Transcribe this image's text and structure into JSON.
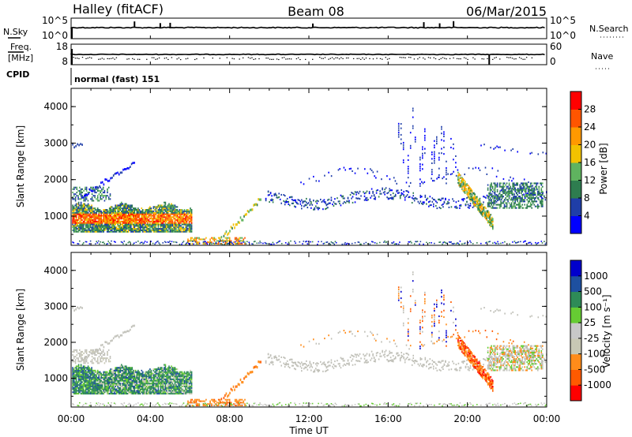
{
  "header": {
    "title": "Halley (fitACF)",
    "beam": "Beam 08",
    "date": "06/Mar/2015"
  },
  "top_panels": {
    "nsky_label": "N.Sky",
    "nsearch_label": "N.Search",
    "nsky_ticks": [
      "10^5",
      "10^0"
    ],
    "nsearch_ticks": [
      "10^5",
      "10^0"
    ],
    "freq_label_1": "Freq.",
    "freq_label_2": "[MHz]",
    "freq_ticks": [
      "18",
      "8"
    ],
    "nave_label": "Nave",
    "nave_ticks": [
      "60",
      "0"
    ],
    "cpid_label": "CPID",
    "cpid_text": "normal (fast) 151"
  },
  "colors": {
    "power_scale": [
      "#0000ff",
      "#1f3ea8",
      "#2e7d4f",
      "#5fb35f",
      "#f2c200",
      "#ff9900",
      "#ff5500",
      "#ff0000"
    ],
    "velocity_scale": [
      "#ff0000",
      "#ff5a00",
      "#ff8c1a",
      "#c8c8b4",
      "#c8c8c8",
      "#66cc33",
      "#2e8b57",
      "#1e50a0",
      "#0000cc"
    ],
    "ground_scatter": "#c0c0b8"
  },
  "chart_data": [
    {
      "type": "heatmap",
      "name": "power",
      "ylabel": "Slant Range [km]",
      "xlabel": "",
      "x_ticks": [
        "00:00",
        "04:00",
        "08:00",
        "12:00",
        "16:00",
        "20:00",
        "00:00"
      ],
      "y_ticks": [
        1000,
        2000,
        3000,
        4000
      ],
      "ylim": [
        200,
        4500
      ],
      "xlim_hours": [
        0,
        24
      ],
      "colorbar": {
        "label": "Power [dB]",
        "ticks": [
          "28",
          "24",
          "20",
          "16",
          "12",
          "8",
          "4"
        ],
        "range": [
          0,
          32
        ]
      }
    },
    {
      "type": "heatmap",
      "name": "velocity",
      "ylabel": "Slant Range [km]",
      "xlabel": "Time UT",
      "x_ticks": [
        "00:00",
        "04:00",
        "08:00",
        "12:00",
        "16:00",
        "20:00",
        "00:00"
      ],
      "y_ticks": [
        1000,
        2000,
        3000,
        4000
      ],
      "ylim": [
        200,
        4500
      ],
      "xlim_hours": [
        0,
        24
      ],
      "colorbar": {
        "label": "Velocity [m s⁻¹]",
        "ticks": [
          "1000",
          "500",
          "100",
          "25",
          "-25",
          "-100",
          "-500",
          "-1000"
        ]
      }
    }
  ]
}
